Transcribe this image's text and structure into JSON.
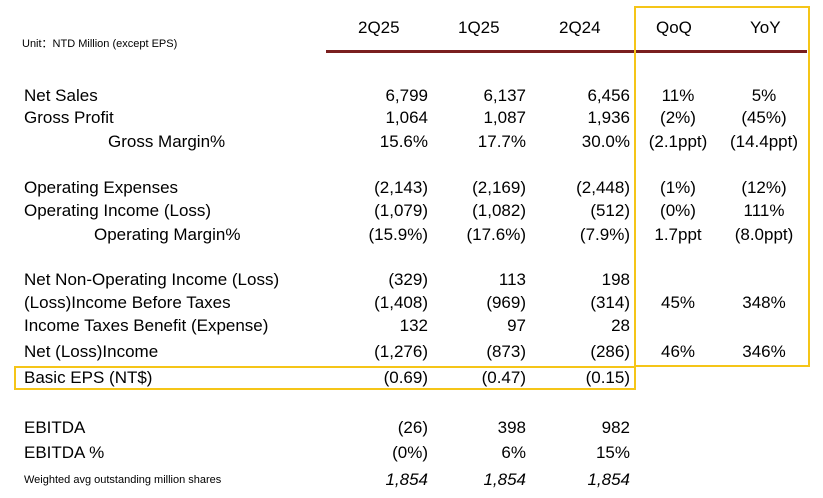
{
  "unit_note": "Unit：NTD Million (except EPS)",
  "columns": [
    "2Q25",
    "1Q25",
    "2Q24",
    "QoQ",
    "YoY"
  ],
  "rows": [
    {
      "label": "Net Sales",
      "v": [
        "6,799",
        "6,137",
        "6,456",
        "11%",
        "5%"
      ]
    },
    {
      "label": "Gross Profit",
      "v": [
        "1,064",
        "1,087",
        "1,936",
        "(2%)",
        "(45%)"
      ]
    },
    {
      "label": "Gross Margin%",
      "v": [
        "15.6%",
        "17.7%",
        "30.0%",
        "(2.1ppt)",
        "(14.4ppt)"
      ]
    },
    {
      "label": "Operating Expenses",
      "v": [
        "(2,143)",
        "(2,169)",
        "(2,448)",
        "(1%)",
        "(12%)"
      ]
    },
    {
      "label": "Operating Income (Loss)",
      "v": [
        "(1,079)",
        "(1,082)",
        "(512)",
        "(0%)",
        "111%"
      ]
    },
    {
      "label": "Operating Margin%",
      "v": [
        "(15.9%)",
        "(17.6%)",
        "(7.9%)",
        "1.7ppt",
        "(8.0ppt)"
      ]
    },
    {
      "label": "Net Non-Operating Income (Loss)",
      "v": [
        "(329)",
        "113",
        "198",
        "",
        ""
      ]
    },
    {
      "label": "(Loss)Income Before Taxes",
      "v": [
        "(1,408)",
        "(969)",
        "(314)",
        "45%",
        "348%"
      ]
    },
    {
      "label": "Income Taxes Benefit (Expense)",
      "v": [
        "132",
        "97",
        "28",
        "",
        ""
      ]
    },
    {
      "label": "Net (Loss)Income",
      "v": [
        "(1,276)",
        "(873)",
        "(286)",
        "46%",
        "346%"
      ]
    },
    {
      "label": "Basic EPS (NT$)",
      "v": [
        "(0.69)",
        "(0.47)",
        "(0.15)",
        "",
        ""
      ]
    },
    {
      "label": "EBITDA",
      "v": [
        "(26)",
        "398",
        "982",
        "",
        ""
      ]
    },
    {
      "label": "EBITDA %",
      "v": [
        "(0%)",
        "6%",
        "15%",
        "",
        ""
      ]
    },
    {
      "label": "Weighted avg outstanding million shares",
      "v": [
        "1,854",
        "1,854",
        "1,854",
        "",
        ""
      ]
    }
  ],
  "colors": {
    "highlight": "#f5c518",
    "rule": "#7a1f1f"
  }
}
